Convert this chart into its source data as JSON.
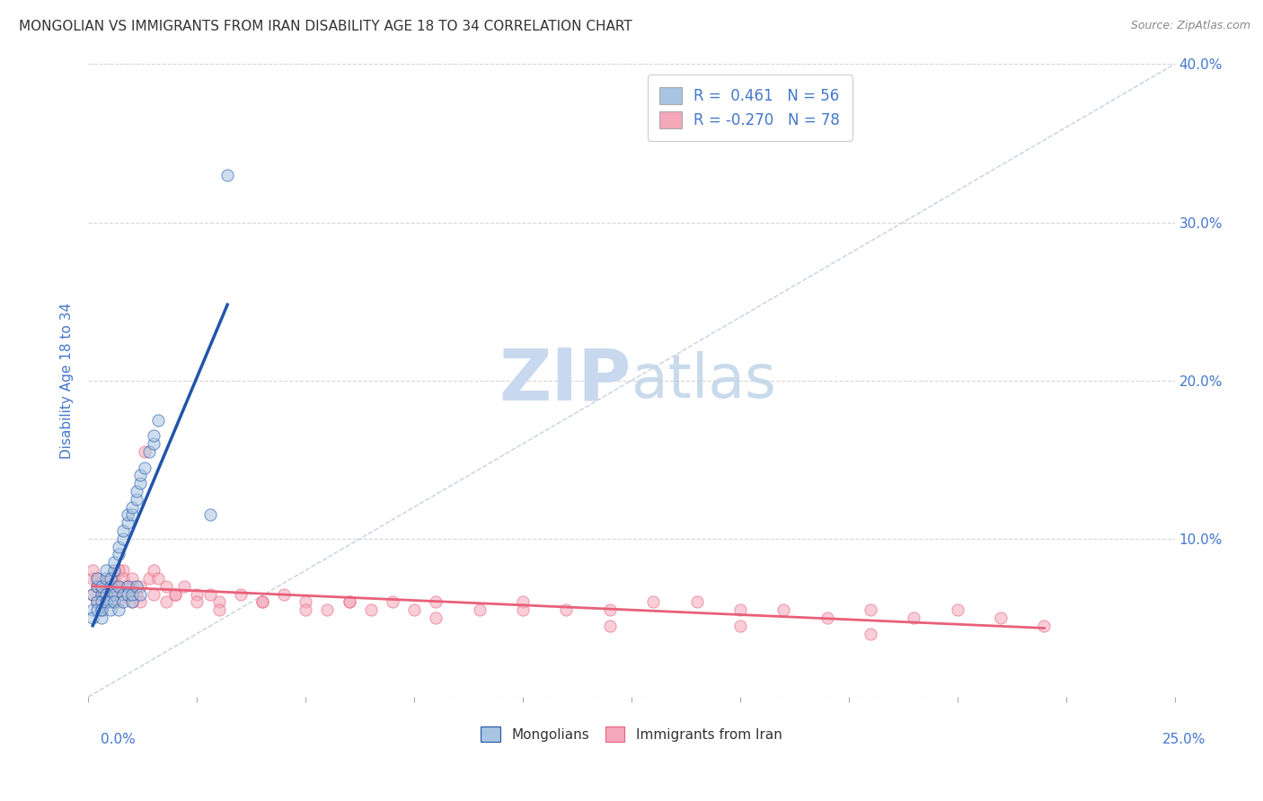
{
  "title": "MONGOLIAN VS IMMIGRANTS FROM IRAN DISABILITY AGE 18 TO 34 CORRELATION CHART",
  "source": "Source: ZipAtlas.com",
  "ylabel": "Disability Age 18 to 34",
  "xlim": [
    0.0,
    0.25
  ],
  "ylim": [
    0.0,
    0.4
  ],
  "right_yticks": [
    0.1,
    0.2,
    0.3,
    0.4
  ],
  "right_ytick_labels": [
    "10.0%",
    "20.0%",
    "30.0%",
    "40.0%"
  ],
  "x_left_label": "0.0%",
  "x_right_label": "25.0%",
  "legend_bottom_labels": [
    "Mongolians",
    "Immigrants from Iran"
  ],
  "legend_top": [
    {
      "label": "R =  0.461   N = 56",
      "color": "#a8c4e0"
    },
    {
      "label": "R = -0.270   N = 78",
      "color": "#f4a7b9"
    }
  ],
  "mongolian_color": "#a8c4e0",
  "iran_color": "#f4a7b9",
  "mongolian_line_color": "#2255aa",
  "iran_line_color": "#e8607a",
  "scatter_alpha": 0.55,
  "scatter_size": 90,
  "watermark_zip": "ZIP",
  "watermark_atlas": "atlas",
  "watermark_color": "#c8d8ee",
  "background_color": "#ffffff",
  "grid_color": "#cccccc",
  "title_color": "#333333",
  "axis_label_color": "#4477cc",
  "mongolian_x": [
    0.001,
    0.002,
    0.002,
    0.003,
    0.003,
    0.004,
    0.004,
    0.004,
    0.005,
    0.005,
    0.005,
    0.006,
    0.006,
    0.007,
    0.007,
    0.008,
    0.008,
    0.009,
    0.009,
    0.01,
    0.01,
    0.011,
    0.011,
    0.012,
    0.012,
    0.013,
    0.014,
    0.015,
    0.015,
    0.016,
    0.001,
    0.002,
    0.003,
    0.003,
    0.004,
    0.005,
    0.006,
    0.007,
    0.008,
    0.009,
    0.001,
    0.002,
    0.003,
    0.003,
    0.004,
    0.005,
    0.006,
    0.007,
    0.008,
    0.009,
    0.01,
    0.01,
    0.011,
    0.012,
    0.028,
    0.032
  ],
  "mongolian_y": [
    0.065,
    0.07,
    0.075,
    0.065,
    0.07,
    0.075,
    0.08,
    0.06,
    0.065,
    0.07,
    0.075,
    0.08,
    0.085,
    0.09,
    0.095,
    0.1,
    0.105,
    0.11,
    0.115,
    0.115,
    0.12,
    0.125,
    0.13,
    0.135,
    0.14,
    0.145,
    0.155,
    0.16,
    0.165,
    0.175,
    0.055,
    0.06,
    0.055,
    0.06,
    0.065,
    0.06,
    0.065,
    0.07,
    0.065,
    0.07,
    0.05,
    0.055,
    0.05,
    0.055,
    0.06,
    0.055,
    0.06,
    0.055,
    0.06,
    0.065,
    0.06,
    0.065,
    0.07,
    0.065,
    0.115,
    0.33
  ],
  "iran_x": [
    0.001,
    0.001,
    0.002,
    0.002,
    0.003,
    0.003,
    0.004,
    0.004,
    0.005,
    0.005,
    0.006,
    0.006,
    0.007,
    0.007,
    0.008,
    0.009,
    0.01,
    0.01,
    0.011,
    0.012,
    0.013,
    0.014,
    0.015,
    0.016,
    0.018,
    0.02,
    0.022,
    0.025,
    0.028,
    0.03,
    0.035,
    0.04,
    0.045,
    0.05,
    0.055,
    0.06,
    0.065,
    0.07,
    0.075,
    0.08,
    0.09,
    0.1,
    0.11,
    0.12,
    0.13,
    0.14,
    0.15,
    0.16,
    0.17,
    0.18,
    0.19,
    0.2,
    0.21,
    0.22,
    0.001,
    0.002,
    0.003,
    0.004,
    0.005,
    0.006,
    0.007,
    0.008,
    0.009,
    0.01,
    0.012,
    0.015,
    0.018,
    0.02,
    0.025,
    0.03,
    0.04,
    0.05,
    0.06,
    0.08,
    0.1,
    0.12,
    0.15,
    0.18
  ],
  "iran_y": [
    0.075,
    0.065,
    0.07,
    0.06,
    0.065,
    0.055,
    0.07,
    0.06,
    0.065,
    0.07,
    0.065,
    0.075,
    0.06,
    0.07,
    0.08,
    0.065,
    0.06,
    0.07,
    0.065,
    0.06,
    0.155,
    0.075,
    0.08,
    0.075,
    0.07,
    0.065,
    0.07,
    0.065,
    0.065,
    0.06,
    0.065,
    0.06,
    0.065,
    0.06,
    0.055,
    0.06,
    0.055,
    0.06,
    0.055,
    0.06,
    0.055,
    0.06,
    0.055,
    0.055,
    0.06,
    0.06,
    0.055,
    0.055,
    0.05,
    0.055,
    0.05,
    0.055,
    0.05,
    0.045,
    0.08,
    0.075,
    0.07,
    0.065,
    0.075,
    0.07,
    0.08,
    0.075,
    0.07,
    0.075,
    0.07,
    0.065,
    0.06,
    0.065,
    0.06,
    0.055,
    0.06,
    0.055,
    0.06,
    0.05,
    0.055,
    0.045,
    0.045,
    0.04
  ]
}
